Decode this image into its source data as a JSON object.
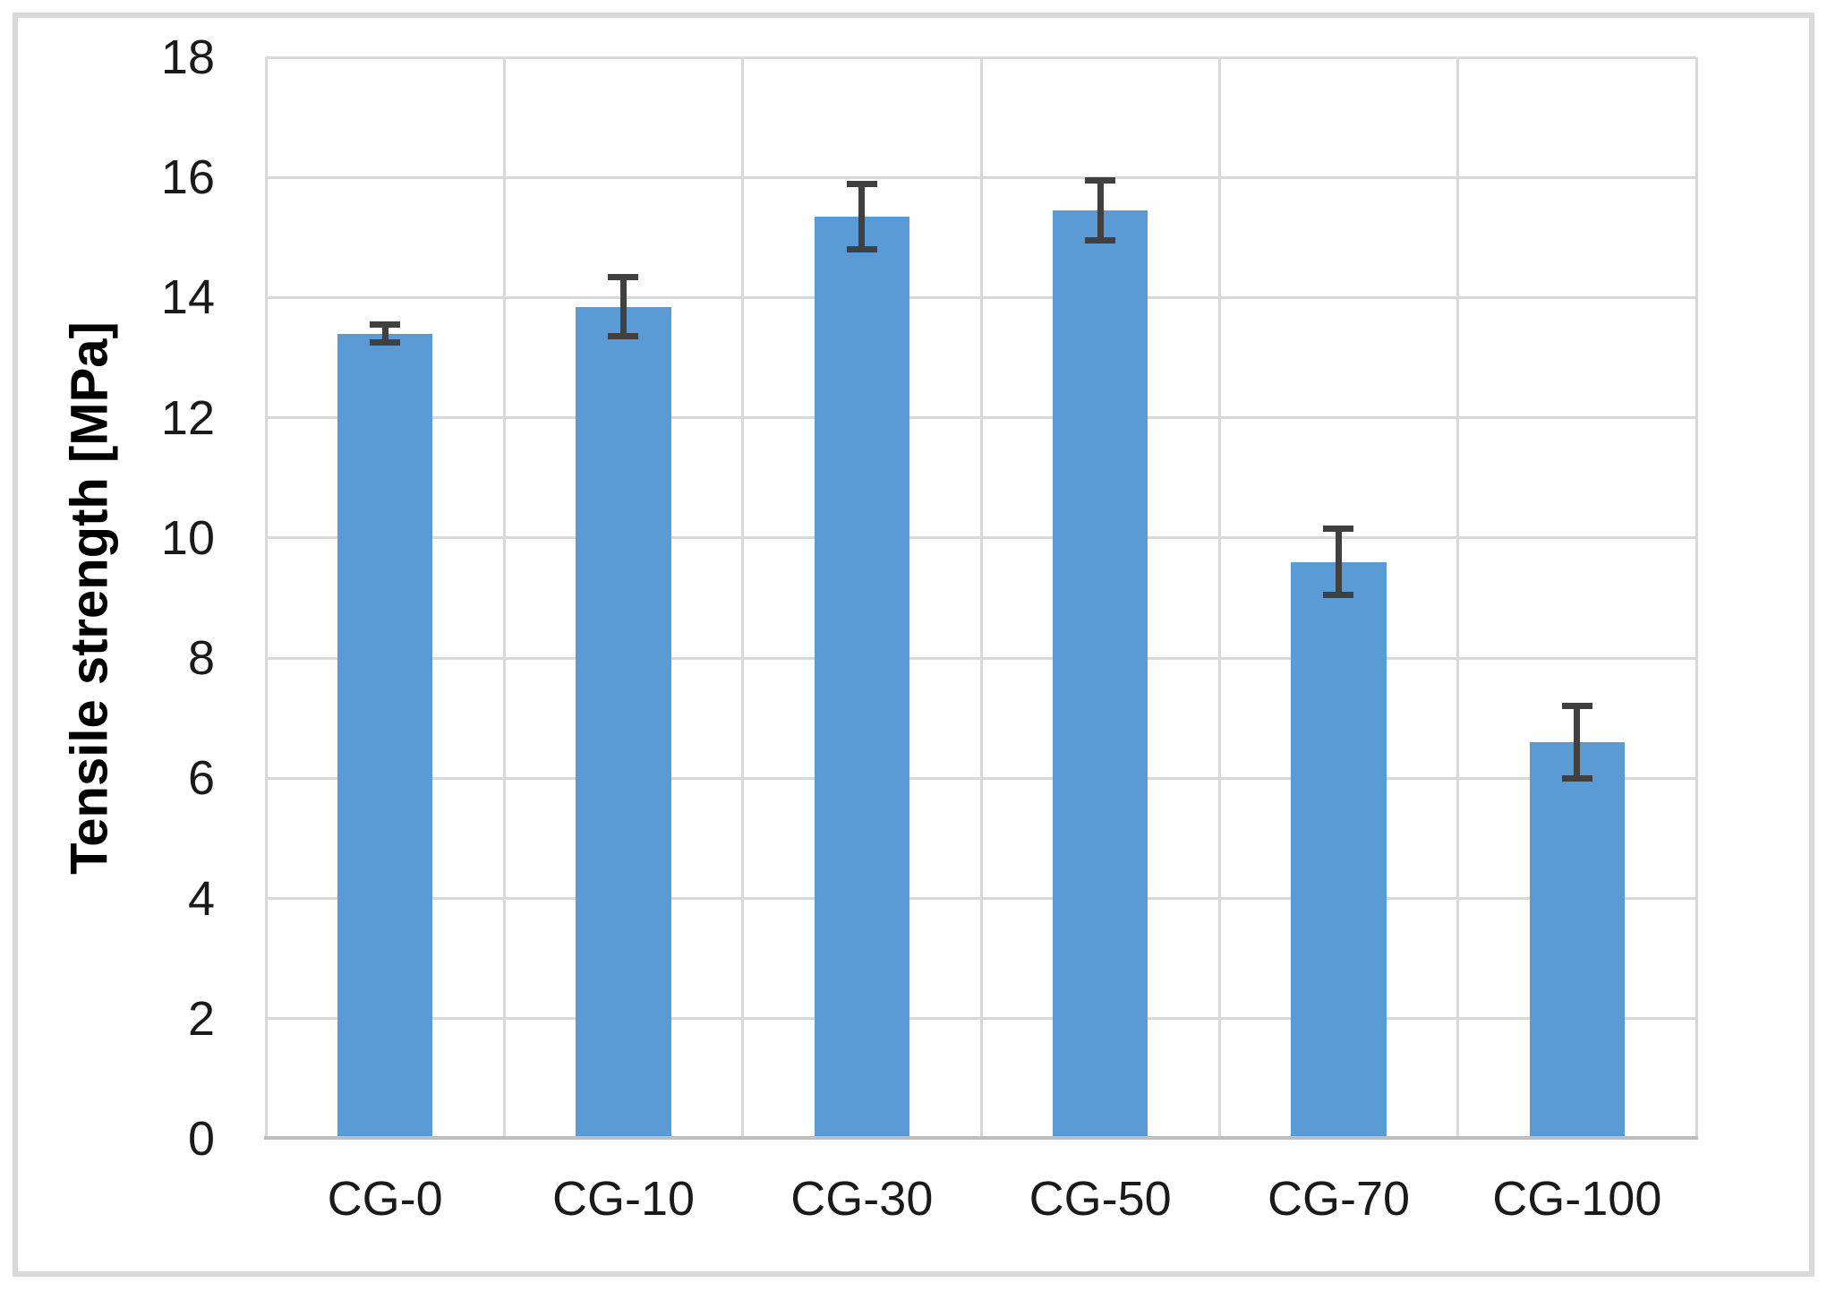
{
  "chart_data": {
    "type": "bar",
    "categories": [
      "CG-0",
      "CG-10",
      "CG-30",
      "CG-50",
      "CG-70",
      "CG-100"
    ],
    "values": [
      13.4,
      13.85,
      15.35,
      15.45,
      9.6,
      6.6
    ],
    "error_bars": [
      0.2,
      0.55,
      0.6,
      0.55,
      0.6,
      0.65
    ],
    "xlabel": "",
    "ylabel": "Tensile strength [MPa]",
    "ylim": [
      0,
      18
    ],
    "y_tick_labels": [
      0,
      2,
      4,
      6,
      8,
      10,
      12,
      14,
      16,
      18
    ],
    "grid": true,
    "legend": false,
    "colors": {
      "bar": "#5B9BD5",
      "error_bar": "#404040",
      "gridline": "#D9D9D9",
      "axis_line": "#BFBFBF",
      "frame_border": "#D9D9D9",
      "text": "#1A1A1A"
    }
  }
}
